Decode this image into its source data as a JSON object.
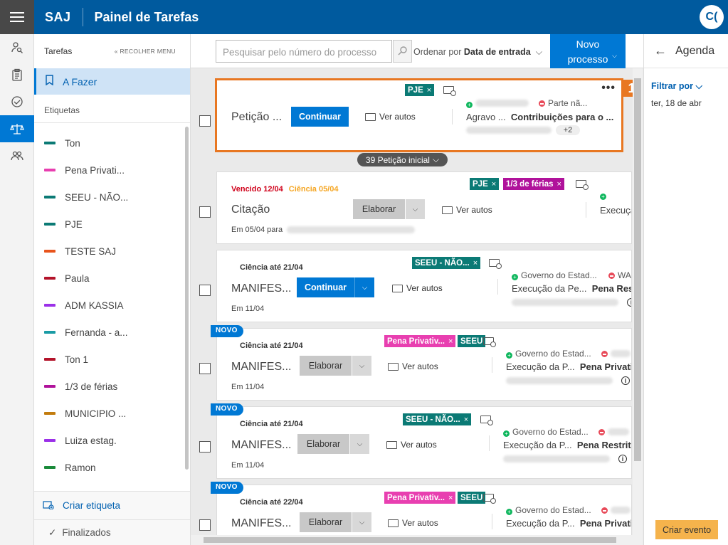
{
  "app": {
    "brand": "SAJ",
    "title": "Painel de Tarefas",
    "avatar": "C("
  },
  "rail": [
    "person-search-icon",
    "clipboard-icon",
    "handshake-icon",
    "scales-icon",
    "people-icon"
  ],
  "sidebar": {
    "section": "Tarefas",
    "collapse": "RECOLHER MENU",
    "active": "A Fazer",
    "labels_title": "Etiquetas",
    "tags": [
      {
        "label": "Ton",
        "color": "#0b7a75"
      },
      {
        "label": "Pena Privati...",
        "color": "#e83fb0"
      },
      {
        "label": "SEEU - NÃO...",
        "color": "#0b7a75"
      },
      {
        "label": "PJE",
        "color": "#0b7a75"
      },
      {
        "label": "TESTE SAJ",
        "color": "#e8541c"
      },
      {
        "label": "Paula",
        "color": "#b3132a"
      },
      {
        "label": "ADM KASSIA",
        "color": "#9b30e8"
      },
      {
        "label": "Fernanda - a...",
        "color": "#1a9ba5"
      },
      {
        "label": "Ton 1",
        "color": "#b3132a"
      },
      {
        "label": "1/3 de férias",
        "color": "#b0129b"
      },
      {
        "label": "MUNICIPIO ...",
        "color": "#c27c0e"
      },
      {
        "label": "Luiza estag.",
        "color": "#9b30e8"
      },
      {
        "label": "Ramon",
        "color": "#1a8a3a"
      }
    ],
    "create": "Criar etiqueta",
    "finished": "Finalizados"
  },
  "toolbar": {
    "search_placeholder": "Pesquisar pelo número do processo",
    "order_label": "Ordenar por",
    "order_value": "Data de entrada",
    "new_line1": "Novo",
    "new_line2": "processo"
  },
  "cards": [
    {
      "title": "Petição ...",
      "button": "Continuar",
      "autos": "Ver autos",
      "chips": [
        {
          "t": "PJE",
          "c": "#0b7a75"
        }
      ],
      "p_right": "Parte nã...",
      "p_row_l": "Agravo ...",
      "p_row_r": "Contribuições para o ...",
      "more": "+2",
      "group": "39 Petição inicial",
      "badge": "1"
    },
    {
      "venc": "Vencido 12/04",
      "cien": "Ciência 05/04",
      "title": "Citação",
      "button": "Elaborar",
      "autos": "Ver autos",
      "sub": "Em 05/04 para",
      "chips": [
        {
          "t": "PJE",
          "c": "#0b7a75"
        },
        {
          "t": "1/3 de férias",
          "c": "#b0129b"
        }
      ],
      "p_row_l": "Execuçã"
    },
    {
      "date": "Ciência até 21/04",
      "title": "MANIFES...",
      "button": "Continuar",
      "autos": "Ver autos",
      "sub": "Em 11/04",
      "chips": [
        {
          "t": "SEEU - NÃO...",
          "c": "#0b7a75"
        }
      ],
      "p_left": "Governo do Estad...",
      "p_right": "WA",
      "p_row_l": "Execução da Pe...",
      "p_row_r": "Pena Restri"
    },
    {
      "novo": "NOVO",
      "date": "Ciência até 21/04",
      "title": "MANIFES...",
      "button": "Elaborar",
      "autos": "Ver autos",
      "sub": "Em 11/04",
      "chips": [
        {
          "t": "Pena Privativ...",
          "c": "#e83fb0"
        },
        {
          "t": "SEEU",
          "c": "#0b7a75"
        }
      ],
      "p_left": "Governo do Estad...",
      "p_row_l": "Execução da P...",
      "p_row_r": "Pena Privativ"
    },
    {
      "novo": "NOVO",
      "date": "Ciência até 21/04",
      "title": "MANIFES...",
      "button": "Elaborar",
      "autos": "Ver autos",
      "sub": "Em 11/04",
      "chips": [
        {
          "t": "SEEU - NÃO...",
          "c": "#0b7a75"
        }
      ],
      "p_left": "Governo do Estad...",
      "p_row_l": "Execução da P...",
      "p_row_r": "Pena Restritiv"
    },
    {
      "novo": "NOVO",
      "date": "Ciência até 22/04",
      "title": "MANIFES...",
      "button": "Elaborar",
      "autos": "Ver autos",
      "chips": [
        {
          "t": "Pena Privativ...",
          "c": "#e83fb0"
        },
        {
          "t": "SEEU",
          "c": "#0b7a75"
        }
      ],
      "p_left": "Governo do Estad...",
      "p_row_l": "Execução da P...",
      "p_row_r": "Pena Privativ"
    }
  ],
  "agenda": {
    "title": "Agenda",
    "filter": "Filtrar por",
    "date": "ter, 18 de abr",
    "create": "Criar evento"
  }
}
